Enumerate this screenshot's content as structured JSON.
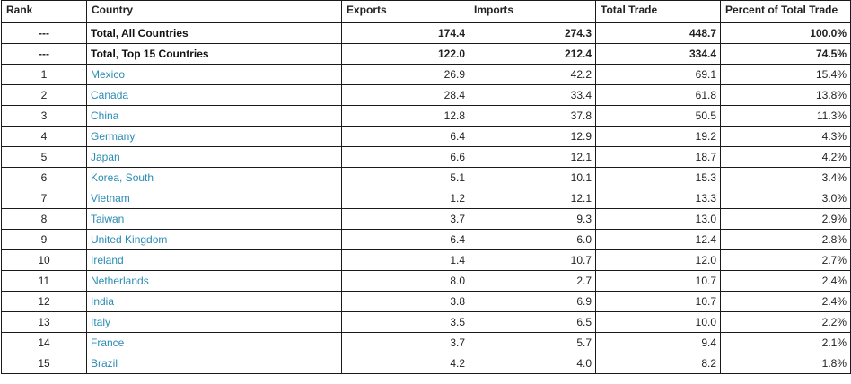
{
  "table": {
    "headers": {
      "rank": "Rank",
      "country": "Country",
      "exports": "Exports",
      "imports": "Imports",
      "total_trade": "Total Trade",
      "percent": "Percent of Total Trade"
    },
    "totals": [
      {
        "rank": "---",
        "country": "Total, All Countries",
        "exports": "174.4",
        "imports": "274.3",
        "total": "448.7",
        "percent": "100.0%"
      },
      {
        "rank": "---",
        "country": "Total, Top 15 Countries",
        "exports": "122.0",
        "imports": "212.4",
        "total": "334.4",
        "percent": "74.5%"
      }
    ],
    "rows": [
      {
        "rank": "1",
        "country": "Mexico",
        "exports": "26.9",
        "imports": "42.2",
        "total": "69.1",
        "percent": "15.4%"
      },
      {
        "rank": "2",
        "country": "Canada",
        "exports": "28.4",
        "imports": "33.4",
        "total": "61.8",
        "percent": "13.8%"
      },
      {
        "rank": "3",
        "country": "China",
        "exports": "12.8",
        "imports": "37.8",
        "total": "50.5",
        "percent": "11.3%"
      },
      {
        "rank": "4",
        "country": "Germany",
        "exports": "6.4",
        "imports": "12.9",
        "total": "19.2",
        "percent": "4.3%"
      },
      {
        "rank": "5",
        "country": "Japan",
        "exports": "6.6",
        "imports": "12.1",
        "total": "18.7",
        "percent": "4.2%"
      },
      {
        "rank": "6",
        "country": "Korea, South",
        "exports": "5.1",
        "imports": "10.1",
        "total": "15.3",
        "percent": "3.4%"
      },
      {
        "rank": "7",
        "country": "Vietnam",
        "exports": "1.2",
        "imports": "12.1",
        "total": "13.3",
        "percent": "3.0%"
      },
      {
        "rank": "8",
        "country": "Taiwan",
        "exports": "3.7",
        "imports": "9.3",
        "total": "13.0",
        "percent": "2.9%"
      },
      {
        "rank": "9",
        "country": "United Kingdom",
        "exports": "6.4",
        "imports": "6.0",
        "total": "12.4",
        "percent": "2.8%"
      },
      {
        "rank": "10",
        "country": "Ireland",
        "exports": "1.4",
        "imports": "10.7",
        "total": "12.0",
        "percent": "2.7%"
      },
      {
        "rank": "11",
        "country": "Netherlands",
        "exports": "8.0",
        "imports": "2.7",
        "total": "10.7",
        "percent": "2.4%"
      },
      {
        "rank": "12",
        "country": "India",
        "exports": "3.8",
        "imports": "6.9",
        "total": "10.7",
        "percent": "2.4%"
      },
      {
        "rank": "13",
        "country": "Italy",
        "exports": "3.5",
        "imports": "6.5",
        "total": "10.0",
        "percent": "2.2%"
      },
      {
        "rank": "14",
        "country": "France",
        "exports": "3.7",
        "imports": "5.7",
        "total": "9.4",
        "percent": "2.1%"
      },
      {
        "rank": "15",
        "country": "Brazil",
        "exports": "4.2",
        "imports": "4.0",
        "total": "8.2",
        "percent": "1.8%"
      }
    ]
  },
  "colors": {
    "link": "#2a8bb3",
    "border": "#1a1a1a"
  }
}
